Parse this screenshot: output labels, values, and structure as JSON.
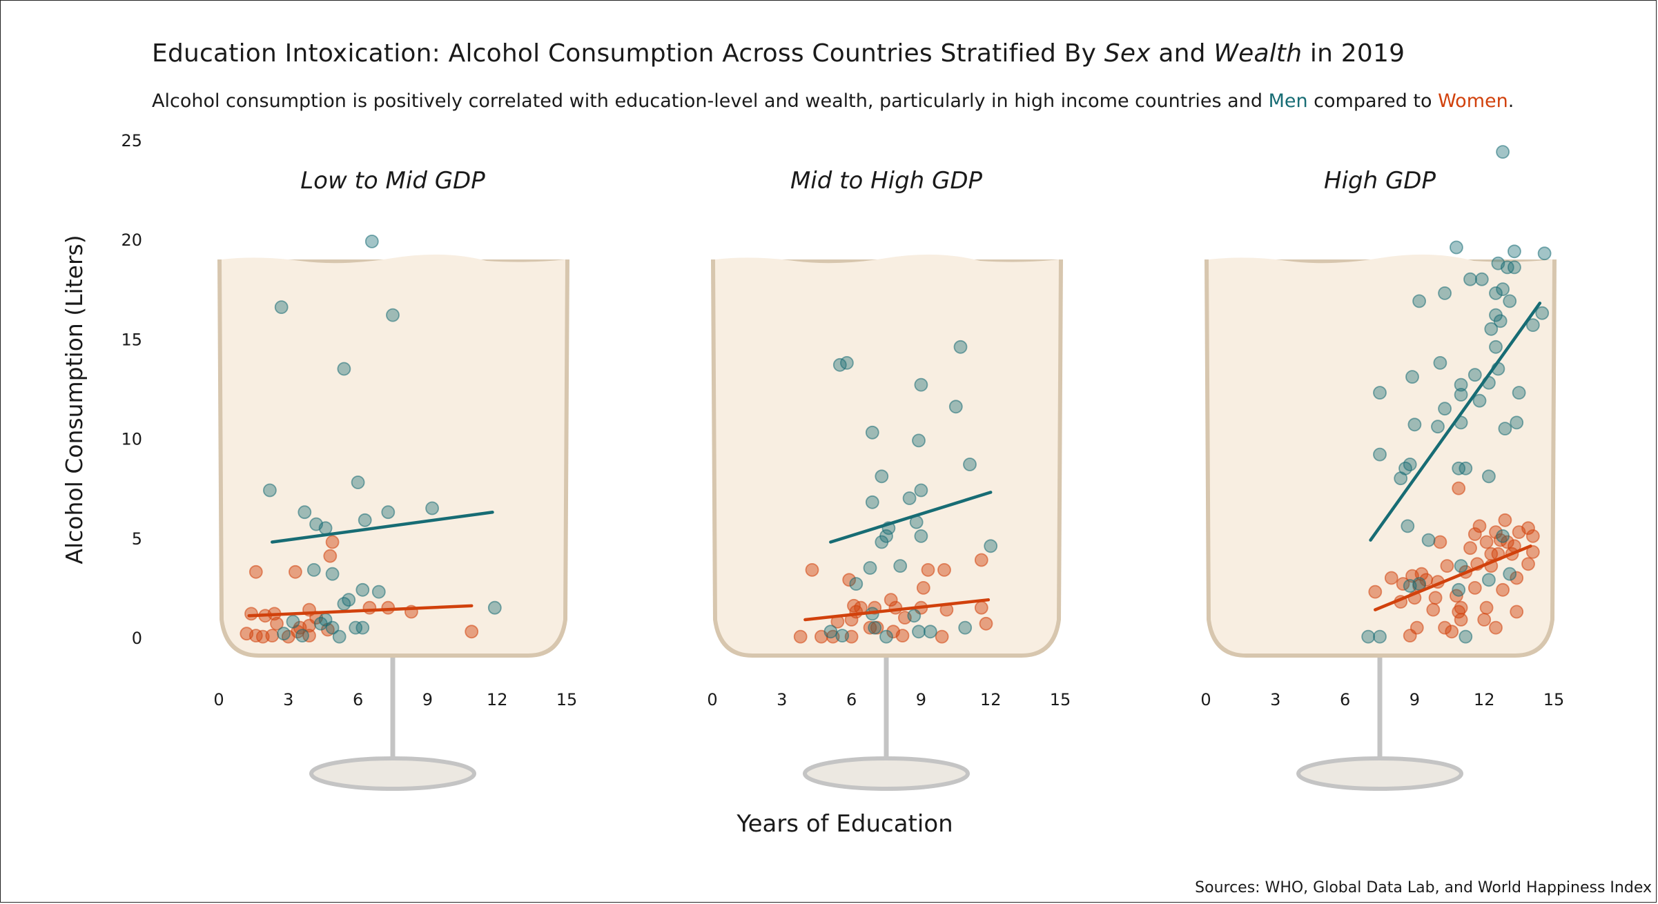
{
  "title": {
    "before_sex": "Education Intoxication: Alcohol Consumption Across Countries Stratified By ",
    "sex": "Sex",
    "and": " and ",
    "wealth": "Wealth",
    "after": " in 2019"
  },
  "subtitle": {
    "text_before": "Alcohol consumption is positively correlated with education-level and wealth, particularly in high income countries and ",
    "men": "Men",
    "compared": " compared to ",
    "women": "Women",
    "period": "."
  },
  "sources": "Sources: WHO, Global Data Lab, and World Happiness Index",
  "colors": {
    "men": "#176C74",
    "women": "#D1410C",
    "glass_fill": "#F8EEE1",
    "glass_edge": "#D7C6AE",
    "stem": "#C4C4C4"
  },
  "chart_data": {
    "type": "scatter",
    "ylabel": "Alcohol Consumption (Liters)",
    "xlabel": "Years of Education",
    "y_ticks": [
      "0",
      "5",
      "10",
      "15",
      "20",
      "25"
    ],
    "x_ticks": [
      "0",
      "3",
      "6",
      "9",
      "12",
      "15"
    ],
    "ylim": [
      0,
      25
    ],
    "xlim": [
      0,
      15
    ],
    "grid": false,
    "facets": [
      {
        "label": "Low to Mid GDP",
        "series": [
          {
            "name": "Men",
            "points": [
              [
                2.2,
                7.4
              ],
              [
                2.7,
                16.6
              ],
              [
                7.5,
                16.2
              ],
              [
                6.6,
                19.9
              ],
              [
                5.4,
                13.5
              ],
              [
                6.0,
                7.8
              ],
              [
                3.7,
                6.3
              ],
              [
                4.2,
                5.7
              ],
              [
                4.6,
                5.5
              ],
              [
                6.3,
                5.9
              ],
              [
                7.3,
                6.3
              ],
              [
                9.2,
                6.5
              ],
              [
                4.1,
                3.4
              ],
              [
                4.9,
                3.2
              ],
              [
                6.2,
                2.4
              ],
              [
                6.9,
                2.3
              ],
              [
                5.6,
                1.9
              ],
              [
                5.4,
                1.7
              ],
              [
                11.9,
                1.5
              ],
              [
                4.6,
                0.9
              ],
              [
                5.9,
                0.5
              ],
              [
                6.2,
                0.5
              ],
              [
                2.8,
                0.2
              ],
              [
                3.6,
                0.1
              ],
              [
                5.2,
                0.05
              ],
              [
                4.4,
                0.7
              ],
              [
                4.9,
                0.5
              ],
              [
                3.2,
                0.8
              ]
            ]
          },
          {
            "name": "Women",
            "points": [
              [
                1.6,
                3.3
              ],
              [
                3.3,
                3.3
              ],
              [
                4.9,
                4.8
              ],
              [
                4.8,
                4.1
              ],
              [
                1.4,
                1.2
              ],
              [
                2.0,
                1.1
              ],
              [
                2.4,
                1.2
              ],
              [
                3.9,
                1.4
              ],
              [
                4.2,
                1.0
              ],
              [
                3.5,
                0.5
              ],
              [
                4.7,
                0.4
              ],
              [
                3.9,
                0.6
              ],
              [
                1.2,
                0.2
              ],
              [
                1.6,
                0.1
              ],
              [
                1.9,
                0.05
              ],
              [
                2.3,
                0.1
              ],
              [
                3.0,
                0.05
              ],
              [
                3.9,
                0.1
              ],
              [
                6.5,
                1.5
              ],
              [
                7.3,
                1.5
              ],
              [
                8.3,
                1.3
              ],
              [
                10.9,
                0.3
              ],
              [
                2.5,
                0.7
              ],
              [
                3.4,
                0.3
              ]
            ]
          }
        ],
        "trend": {
          "Men": [
            [
              2.3,
              4.8
            ],
            [
              11.8,
              6.3
            ]
          ],
          "Women": [
            [
              1.3,
              1.1
            ],
            [
              10.9,
              1.6
            ]
          ]
        }
      },
      {
        "label": "Mid to High GDP",
        "series": [
          {
            "name": "Men",
            "points": [
              [
                5.5,
                13.7
              ],
              [
                5.8,
                13.8
              ],
              [
                10.7,
                14.6
              ],
              [
                9.0,
                12.7
              ],
              [
                10.5,
                11.6
              ],
              [
                6.9,
                10.3
              ],
              [
                8.9,
                9.9
              ],
              [
                11.1,
                8.7
              ],
              [
                7.3,
                8.1
              ],
              [
                9.0,
                7.4
              ],
              [
                8.5,
                7.0
              ],
              [
                6.9,
                6.8
              ],
              [
                8.8,
                5.8
              ],
              [
                9.0,
                5.1
              ],
              [
                7.6,
                5.5
              ],
              [
                7.5,
                5.1
              ],
              [
                7.3,
                4.8
              ],
              [
                12.0,
                4.6
              ],
              [
                6.8,
                3.5
              ],
              [
                8.1,
                3.6
              ],
              [
                6.2,
                2.7
              ],
              [
                6.9,
                1.2
              ],
              [
                8.7,
                1.1
              ],
              [
                5.1,
                0.3
              ],
              [
                5.6,
                0.1
              ],
              [
                7.0,
                0.5
              ],
              [
                7.5,
                0.05
              ],
              [
                8.9,
                0.3
              ],
              [
                9.4,
                0.3
              ],
              [
                10.9,
                0.5
              ]
            ]
          },
          {
            "name": "Women",
            "points": [
              [
                4.3,
                3.4
              ],
              [
                5.9,
                2.9
              ],
              [
                9.3,
                3.4
              ],
              [
                10.0,
                3.4
              ],
              [
                11.6,
                3.9
              ],
              [
                9.1,
                2.5
              ],
              [
                6.1,
                1.6
              ],
              [
                6.4,
                1.5
              ],
              [
                6.2,
                1.3
              ],
              [
                7.0,
                1.5
              ],
              [
                7.7,
                1.9
              ],
              [
                7.9,
                1.5
              ],
              [
                8.3,
                1.0
              ],
              [
                9.0,
                1.5
              ],
              [
                10.1,
                1.4
              ],
              [
                11.6,
                1.5
              ],
              [
                11.8,
                0.7
              ],
              [
                6.0,
                0.9
              ],
              [
                7.1,
                0.5
              ],
              [
                7.8,
                0.3
              ],
              [
                8.2,
                0.1
              ],
              [
                9.9,
                0.05
              ],
              [
                3.8,
                0.05
              ],
              [
                4.7,
                0.05
              ],
              [
                5.2,
                0.05
              ],
              [
                6.0,
                0.05
              ],
              [
                5.4,
                0.8
              ],
              [
                6.8,
                0.5
              ]
            ]
          }
        ],
        "trend": {
          "Men": [
            [
              5.1,
              4.8
            ],
            [
              12.0,
              7.3
            ]
          ],
          "Women": [
            [
              4.0,
              0.9
            ],
            [
              11.9,
              1.9
            ]
          ]
        }
      },
      {
        "label": "High GDP",
        "series": [
          {
            "name": "Men",
            "points": [
              [
                12.8,
                24.4
              ],
              [
                10.8,
                19.6
              ],
              [
                13.3,
                19.4
              ],
              [
                14.6,
                19.3
              ],
              [
                12.6,
                18.8
              ],
              [
                13.0,
                18.6
              ],
              [
                11.4,
                18.0
              ],
              [
                11.9,
                18.0
              ],
              [
                12.8,
                17.5
              ],
              [
                12.5,
                17.3
              ],
              [
                13.3,
                18.6
              ],
              [
                10.3,
                17.3
              ],
              [
                9.2,
                16.9
              ],
              [
                13.1,
                16.9
              ],
              [
                12.5,
                16.2
              ],
              [
                14.5,
                16.3
              ],
              [
                12.3,
                15.5
              ],
              [
                12.7,
                15.9
              ],
              [
                14.1,
                15.7
              ],
              [
                12.5,
                14.6
              ],
              [
                11.6,
                13.2
              ],
              [
                12.6,
                13.5
              ],
              [
                10.1,
                13.8
              ],
              [
                8.9,
                13.1
              ],
              [
                7.5,
                12.3
              ],
              [
                11.0,
                12.7
              ],
              [
                12.2,
                12.8
              ],
              [
                13.5,
                12.3
              ],
              [
                11.0,
                12.2
              ],
              [
                11.8,
                11.9
              ],
              [
                10.3,
                11.5
              ],
              [
                11.0,
                10.8
              ],
              [
                13.4,
                10.8
              ],
              [
                9.0,
                10.7
              ],
              [
                12.9,
                10.5
              ],
              [
                10.0,
                10.6
              ],
              [
                7.5,
                9.2
              ],
              [
                8.6,
                8.5
              ],
              [
                8.8,
                8.7
              ],
              [
                11.2,
                8.5
              ],
              [
                10.9,
                8.5
              ],
              [
                8.4,
                8.0
              ],
              [
                12.2,
                8.1
              ],
              [
                8.7,
                5.6
              ],
              [
                9.6,
                4.9
              ],
              [
                12.8,
                5.1
              ],
              [
                11.0,
                3.6
              ],
              [
                12.2,
                2.9
              ],
              [
                13.1,
                3.2
              ],
              [
                8.8,
                2.6
              ],
              [
                10.9,
                2.4
              ],
              [
                7.5,
                0.05
              ],
              [
                7.0,
                0.05
              ],
              [
                11.2,
                0.05
              ],
              [
                9.2,
                2.7
              ]
            ]
          },
          {
            "name": "Women",
            "points": [
              [
                10.9,
                7.5
              ],
              [
                12.9,
                5.9
              ],
              [
                11.8,
                5.6
              ],
              [
                13.5,
                5.3
              ],
              [
                13.9,
                5.5
              ],
              [
                14.1,
                5.1
              ],
              [
                12.5,
                5.3
              ],
              [
                11.6,
                5.2
              ],
              [
                12.1,
                4.8
              ],
              [
                12.7,
                4.9
              ],
              [
                13.0,
                4.8
              ],
              [
                13.3,
                4.6
              ],
              [
                13.2,
                4.2
              ],
              [
                12.6,
                4.2
              ],
              [
                14.1,
                4.3
              ],
              [
                12.3,
                4.2
              ],
              [
                11.4,
                4.5
              ],
              [
                10.1,
                4.8
              ],
              [
                11.7,
                3.7
              ],
              [
                12.3,
                3.6
              ],
              [
                13.9,
                3.7
              ],
              [
                13.4,
                3.0
              ],
              [
                10.4,
                3.6
              ],
              [
                9.3,
                3.2
              ],
              [
                9.5,
                2.9
              ],
              [
                9.2,
                2.6
              ],
              [
                10.0,
                2.8
              ],
              [
                8.9,
                3.1
              ],
              [
                11.2,
                3.3
              ],
              [
                11.6,
                2.5
              ],
              [
                12.8,
                2.4
              ],
              [
                9.9,
                2.0
              ],
              [
                8.0,
                3.0
              ],
              [
                8.5,
                2.7
              ],
              [
                9.0,
                2.0
              ],
              [
                7.3,
                2.3
              ],
              [
                8.4,
                1.8
              ],
              [
                9.8,
                1.4
              ],
              [
                10.9,
                1.3
              ],
              [
                11.0,
                1.5
              ],
              [
                13.4,
                1.3
              ],
              [
                12.1,
                1.5
              ],
              [
                9.1,
                0.5
              ],
              [
                8.8,
                0.1
              ],
              [
                10.3,
                0.5
              ],
              [
                10.6,
                0.3
              ],
              [
                12.0,
                0.9
              ],
              [
                12.5,
                0.5
              ],
              [
                11.0,
                0.9
              ],
              [
                10.8,
                2.1
              ]
            ]
          }
        ],
        "trend": {
          "Men": [
            [
              7.1,
              4.9
            ],
            [
              14.4,
              16.8
            ]
          ],
          "Women": [
            [
              7.3,
              1.4
            ],
            [
              14.0,
              4.6
            ]
          ]
        }
      }
    ]
  }
}
